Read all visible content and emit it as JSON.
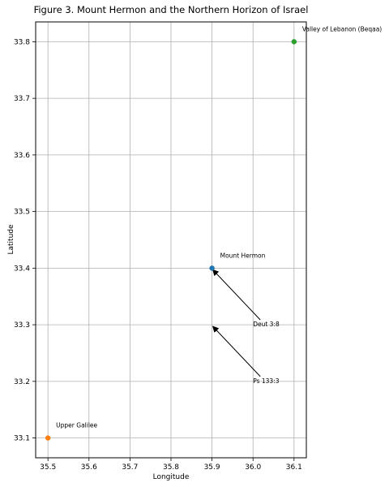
{
  "chart_data": {
    "type": "scatter",
    "title": "Figure 3. Mount Hermon and the Northern Horizon of Israel",
    "xlabel": "Longitude",
    "ylabel": "Latitude",
    "xlim": [
      35.47,
      36.13
    ],
    "ylim": [
      33.065,
      33.835
    ],
    "xticks": [
      35.5,
      35.6,
      35.7,
      35.8,
      35.9,
      36.0,
      36.1
    ],
    "xtick_labels": [
      "35.5",
      "35.6",
      "35.7",
      "35.8",
      "35.9",
      "36.0",
      "36.1"
    ],
    "yticks": [
      33.1,
      33.2,
      33.3,
      33.4,
      33.5,
      33.6,
      33.7,
      33.8
    ],
    "ytick_labels": [
      "33.1",
      "33.2",
      "33.3",
      "33.4",
      "33.5",
      "33.6",
      "33.7",
      "33.8"
    ],
    "grid": true,
    "points": [
      {
        "label": "Upper Galilee",
        "x": 35.5,
        "y": 33.1,
        "color": "#ff7f0e"
      },
      {
        "label": "Mount Hermon",
        "x": 35.9,
        "y": 33.4,
        "color": "#1f77b4"
      },
      {
        "label": "Valley of Lebanon (Beqaa)",
        "x": 36.1,
        "y": 33.8,
        "color": "#2ca02c"
      }
    ],
    "annotations": [
      {
        "text": "Deut 3:8",
        "x": 36.0,
        "y": 33.3,
        "arrow_to": [
          35.9,
          33.4
        ]
      },
      {
        "text": "Ps 133:3",
        "x": 36.0,
        "y": 33.2,
        "arrow_to": [
          35.9,
          33.3
        ]
      }
    ]
  }
}
